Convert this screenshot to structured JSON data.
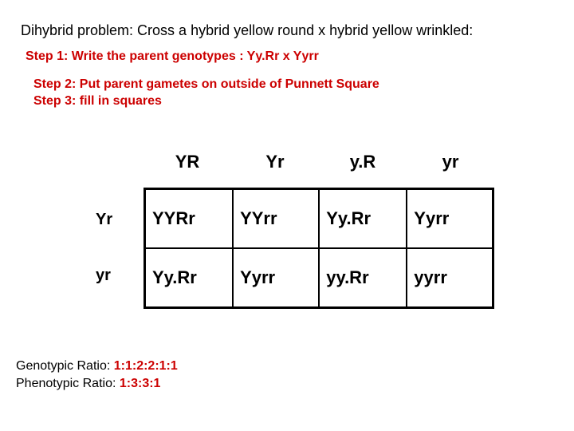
{
  "title": "Dihybrid problem: Cross a hybrid yellow round x hybrid yellow wrinkled:",
  "step1": "Step 1: Write the parent genotypes :  Yy.Rr x Yyrr",
  "step2": "Step 2: Put parent gametes on outside of Punnett Square",
  "step3": "Step 3: fill in squares",
  "colors": {
    "accent": "#cc0000",
    "text": "#000000",
    "border": "#000000",
    "background": "#ffffff"
  },
  "top_gametes": [
    "YR",
    "Yr",
    "y.R",
    "yr"
  ],
  "left_gametes": [
    "Yr",
    "yr"
  ],
  "cells": [
    [
      "YYRr",
      "YYrr",
      "Yy.Rr",
      "Yyrr"
    ],
    [
      "Yy.Rr",
      "Yyrr",
      "yy.Rr",
      "yyrr"
    ]
  ],
  "genotypic_label": "Genotypic Ratio:",
  "genotypic_ratio": "1:1:2:2:1:1",
  "phenotypic_label": "Phenotypic Ratio:",
  "phenotypic_ratio": "1:3:3:1"
}
